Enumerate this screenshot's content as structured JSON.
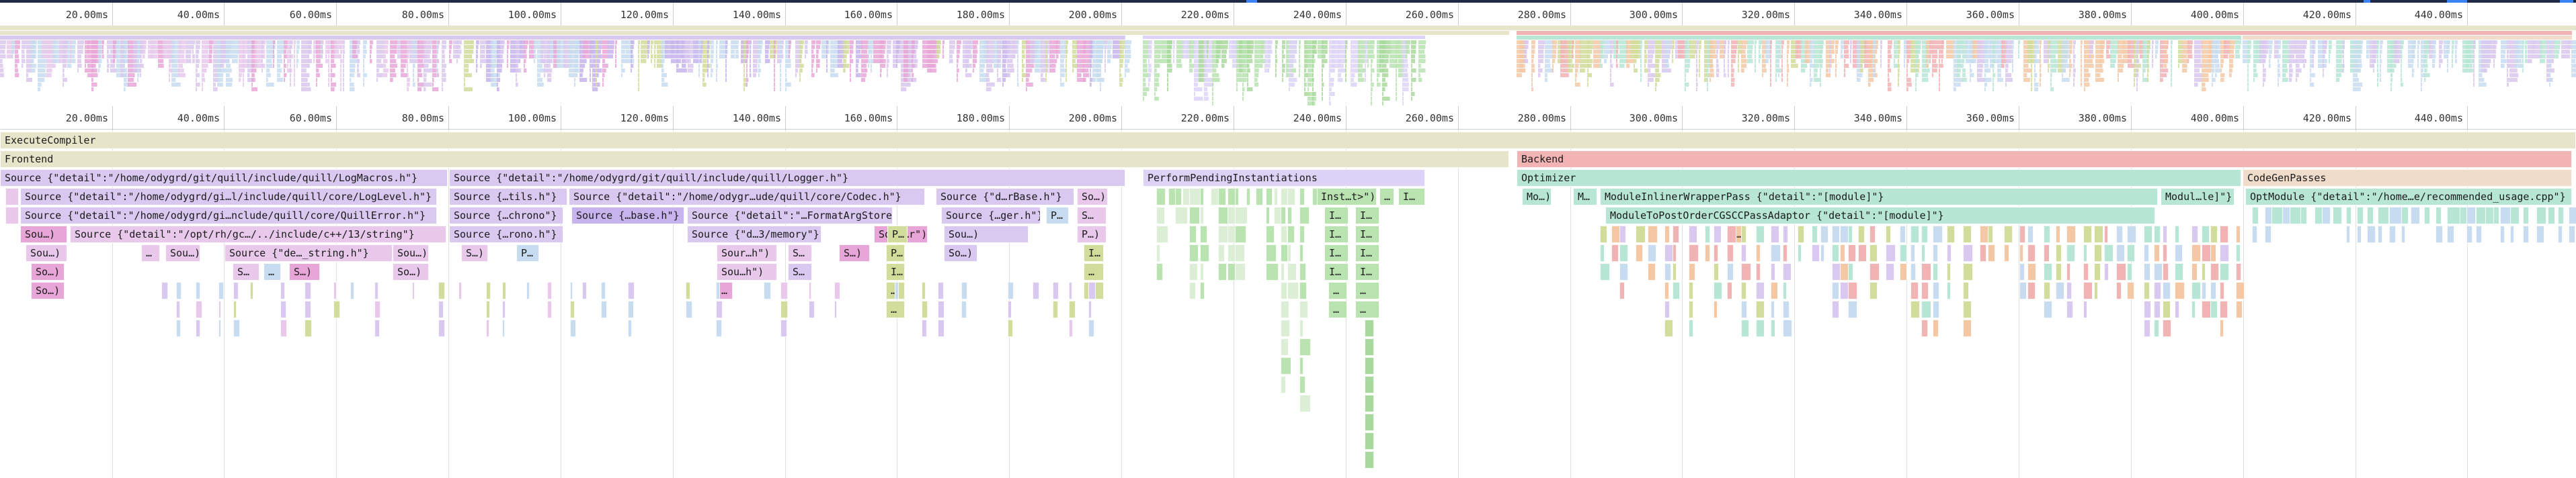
{
  "ruler": {
    "ticks": [
      "20.00ms",
      "40.00ms",
      "60.00ms",
      "80.00ms",
      "100.00ms",
      "120.00ms",
      "140.00ms",
      "160.00ms",
      "180.00ms",
      "200.00ms",
      "220.00ms",
      "240.00ms",
      "260.00ms",
      "280.00ms",
      "300.00ms",
      "320.00ms",
      "340.00ms",
      "360.00ms",
      "380.00ms",
      "400.00ms",
      "420.00ms",
      "440.00ms"
    ]
  },
  "colors": {
    "execute": "#e6e4c9",
    "frontend": "#e6e4c9",
    "source": "#d9c8f0",
    "source_alt": "#e8c9ec",
    "pending": "#dcd3f7",
    "pending_green": "#b9e3b0",
    "backend": "#f2b3b5",
    "optimizer": "#b7e6d5",
    "codegen": "#f0dccb",
    "blue": "#c7dcf0",
    "olive": "#d2dc9b",
    "orange": "#f5c8a5"
  },
  "rows": {
    "execute_compiler": "ExecuteCompiler",
    "frontend": "Frontend",
    "backend": "Backend",
    "optimizer": "Optimizer",
    "codegen_passes": "CodeGenPasses",
    "perform_pending": "PerformPendingInstantiations",
    "module_inliner": "ModuleInlinerWrapperPass {\"detail\":\"[module]\"}",
    "module_to_post": "ModuleToPostOrderCGSCCPassAdaptor {\"detail\":\"[module]\"}",
    "opt_module": "OptModule {\"detail\":\"/home…e/recommended_usage.cpp\"}",
    "modul_le": "Modul…le]\"}",
    "mo": "Mo…)",
    "m": "M…"
  },
  "sources": {
    "log_macros": "Source {\"detail\":\"/home/odygrd/git/quill/include/quill/LogMacros.h\"}",
    "log_level": "Source {\"detail\":\"/home/odygrd/gi…l/include/quill/core/LogLevel.h\"}",
    "quill_error": "Source {\"detail\":\"/home/odygrd/gi…nclude/quill/core/QuillError.h\"}",
    "opt_string": "Source {\"detail\":\"/opt/rh/gc…/../include/c++/13/string\"}",
    "de_string": "Source {\"de…_string.h\"}",
    "logger": "Source {\"detail\":\"/home/odygrd/git/quill/include/quill/Logger.h\"}",
    "tils": "Source {…tils.h\"}",
    "codec": "Source {\"detail\":\"/home/odygr…ude/quill/core/Codec.h\"}",
    "d_rbase": "Source {\"d…rBase.h\"}",
    "chrono": "Source {…chrono\"}",
    "base": "Source {…base.h\"}",
    "format_arg_store": "Source {\"detail\":\"…FormatArgStore.h\"}",
    "ger": "Source {…ger.h\"}",
    "rono": "Source {…rono.h\"}",
    "d3_memory": "Source {\"d…3/memory\"}",
    "sou": "Sou…)",
    "so": "So…)",
    "s": "S…)",
    "s2": "S…",
    "p": "P…",
    "sour_h": "Sour…h\")",
    "sou_h": "Sou…h\")",
    "sour_r": "Sour…r\")",
    "so2": "So…",
    "inst_t": "Inst…t>\")",
    "i": "I…",
    "i2": "…",
    "p2": "P…)",
    "s3": "S…"
  }
}
